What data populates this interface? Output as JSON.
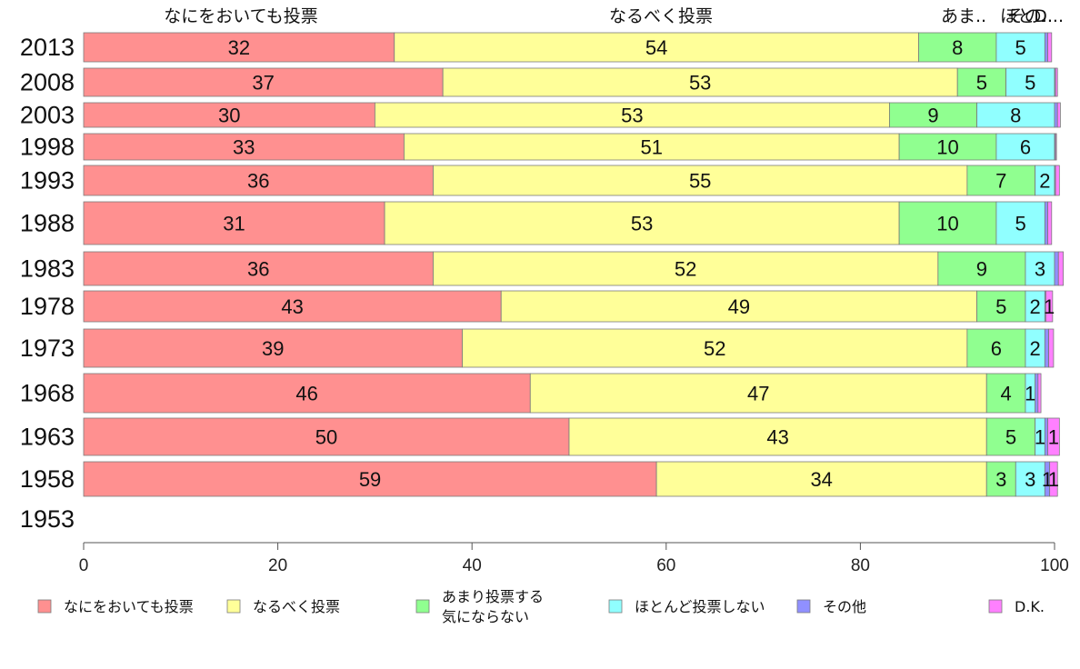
{
  "chart_data": {
    "type": "bar",
    "orientation": "horizontal",
    "stacked": true,
    "categories": [
      "2013",
      "2008",
      "2003",
      "1998",
      "1993",
      "1988",
      "1983",
      "1978",
      "1973",
      "1968",
      "1963",
      "1958",
      "1953"
    ],
    "series": [
      {
        "name": "なにをおいても投票",
        "color": "#ff9090",
        "values": [
          32,
          37,
          30,
          33,
          36,
          31,
          36,
          43,
          39,
          46,
          50,
          59,
          null
        ]
      },
      {
        "name": "なるべく投票",
        "color": "#ffff99",
        "values": [
          54,
          53,
          53,
          51,
          55,
          53,
          52,
          49,
          52,
          47,
          43,
          34,
          null
        ]
      },
      {
        "name": "あまり投票する気にならない",
        "color": "#90ff90",
        "values": [
          8,
          5,
          9,
          10,
          7,
          10,
          9,
          5,
          6,
          4,
          5,
          3,
          null
        ]
      },
      {
        "name": "ほとんど投票しない",
        "color": "#90ffff",
        "values": [
          5,
          5,
          8,
          6,
          2,
          5,
          3,
          2,
          2,
          1,
          1,
          3,
          null
        ]
      },
      {
        "name": "その他",
        "color": "#9090ff",
        "values": [
          0.3,
          0.1,
          0.3,
          0.1,
          0.1,
          0.3,
          0.4,
          0.1,
          0.4,
          0.3,
          0.3,
          0.5,
          null
        ]
      },
      {
        "name": "D.K.",
        "color": "#ff80ff",
        "values": [
          0.4,
          0.2,
          0.3,
          0.1,
          0.4,
          0.4,
          0.5,
          0.7,
          0.5,
          0.3,
          1.2,
          0.8,
          null
        ]
      }
    ],
    "bar_labels": [
      [
        "32",
        "54",
        "8",
        "5",
        "",
        ""
      ],
      [
        "37",
        "53",
        "5",
        "5",
        "",
        ""
      ],
      [
        "30",
        "53",
        "9",
        "8",
        "",
        ""
      ],
      [
        "33",
        "51",
        "10",
        "6",
        "",
        ""
      ],
      [
        "36",
        "55",
        "7",
        "2",
        "",
        ""
      ],
      [
        "31",
        "53",
        "10",
        "5",
        "",
        ""
      ],
      [
        "36",
        "52",
        "9",
        "3",
        "",
        ""
      ],
      [
        "43",
        "49",
        "5",
        "2",
        "",
        "1"
      ],
      [
        "39",
        "52",
        "6",
        "2",
        "",
        ""
      ],
      [
        "46",
        "47",
        "4",
        "1",
        "",
        ""
      ],
      [
        "50",
        "43",
        "5",
        "1",
        "",
        "1"
      ],
      [
        "59",
        "34",
        "3",
        "3",
        "1",
        "1"
      ],
      [
        "",
        "",
        "",
        "",
        "",
        ""
      ]
    ],
    "top_labels": [
      "なにをおいても投票",
      "なるべく投票",
      "あま..",
      "ほと..",
      "その..",
      "D..."
    ],
    "xlim": [
      0,
      100
    ],
    "xticks": [
      0,
      20,
      40,
      60,
      80,
      100
    ],
    "legend": [
      {
        "label": "なにをおいても投票",
        "color": "#ff9090"
      },
      {
        "label": "なるべく投票",
        "color": "#ffff99"
      },
      {
        "label": "あまり投票する\n気にならない",
        "color": "#90ff90"
      },
      {
        "label": "ほとんど投票しない",
        "color": "#90ffff"
      },
      {
        "label": "その他",
        "color": "#9090ff"
      },
      {
        "label": "D.K.",
        "color": "#ff80ff"
      }
    ],
    "legend_position": "bottom",
    "grid": false
  }
}
